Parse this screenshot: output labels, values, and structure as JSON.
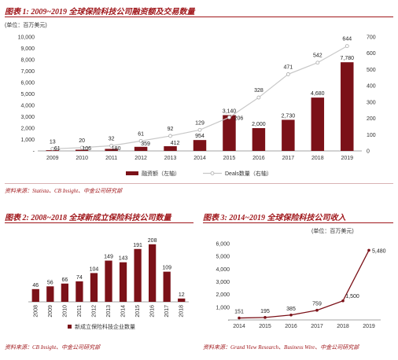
{
  "fig1": {
    "title": "图表 1: 2009~2019 全球保险科技公司融资额及交易数量",
    "source": "资料来源：Statista、CB Insight、中金公司研究部",
    "unit": "(单位：百万美元)",
    "legend_bar": "融资额（左轴）",
    "legend_line": "Deals数量（右轴）"
  },
  "fig2": {
    "title": "图表 2: 2008~2018 全球新成立保险科技公司数量",
    "source": "资料来源：CB Insight、中金公司研究部",
    "legend": "新成立保险科技企业数量"
  },
  "fig3": {
    "title": "图表 3: 2014~2019 全球保险科技公司收入",
    "source": "资料来源：Grand View Research、Business Wire、中金公司研究部",
    "unit": "(单位：百万美元)"
  },
  "colors": {
    "bar": "#7b1118",
    "line": "#c8c8c8",
    "accent": "#a0181c"
  },
  "chart_data": [
    {
      "type": "bar",
      "categories": [
        "2009",
        "2010",
        "2011",
        "2012",
        "2013",
        "2014",
        "2015",
        "2016",
        "2017",
        "2018",
        "2019"
      ],
      "series": [
        {
          "name": "融资额（左轴）",
          "values": [
            61,
            106,
            180,
            359,
            412,
            954,
            3140,
            2000,
            2730,
            4680,
            7780
          ],
          "labels": [
            "61",
            "106",
            "180",
            "359",
            "412",
            "954",
            "3,140",
            "2,000",
            "2,730",
            "4,680",
            "7,780"
          ],
          "axis": "left"
        },
        {
          "name": "Deals数量（右轴）",
          "type": "line",
          "values": [
            13,
            20,
            32,
            61,
            92,
            129,
            206,
            328,
            471,
            542,
            644
          ],
          "labels": [
            "13",
            "20",
            "32",
            "61",
            "92",
            "129",
            "206",
            "328",
            "471",
            "542",
            "644"
          ],
          "axis": "right"
        }
      ],
      "ylim": [
        0,
        10000
      ],
      "y_ticks": [
        "-",
        "1,000",
        "2,000",
        "3,000",
        "4,000",
        "5,000",
        "6,000",
        "7,000",
        "8,000",
        "9,000",
        "10,000"
      ],
      "y2lim": [
        0,
        700
      ],
      "y2_ticks": [
        "0",
        "100",
        "200",
        "300",
        "400",
        "500",
        "600",
        "700"
      ],
      "legend_position": "bottom"
    },
    {
      "type": "bar",
      "categories": [
        "2008",
        "2009",
        "2010",
        "2011",
        "2012",
        "2013",
        "2014",
        "2015",
        "2016",
        "2017",
        "2018"
      ],
      "series": [
        {
          "name": "新成立保险科技企业数量",
          "values": [
            46,
            56,
            66,
            74,
            104,
            149,
            143,
            191,
            208,
            109,
            12
          ]
        }
      ],
      "ylim": [
        0,
        250
      ],
      "legend_position": "bottom"
    },
    {
      "type": "line",
      "categories": [
        "2014",
        "2015",
        "2016",
        "2017",
        "2018",
        "2019"
      ],
      "series": [
        {
          "values": [
            151,
            195,
            385,
            759,
            1500,
            5480
          ],
          "labels": [
            "151",
            "195",
            "385",
            "759",
            "1,500",
            "5,480"
          ]
        }
      ],
      "ylim": [
        0,
        6000
      ],
      "y_ticks": [
        "-",
        "1,000",
        "2,000",
        "3,000",
        "4,000",
        "5,000",
        "6,000"
      ]
    }
  ]
}
